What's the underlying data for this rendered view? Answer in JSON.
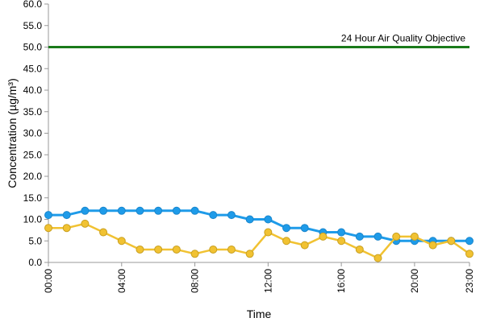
{
  "chart_data": {
    "type": "line",
    "title": "",
    "xlabel": "Time",
    "ylabel": "Concentration (µg/m³)",
    "ylim": [
      0,
      60
    ],
    "y_ticks": [
      "0.0",
      "5.0",
      "10.0",
      "15.0",
      "20.0",
      "25.0",
      "30.0",
      "35.0",
      "40.0",
      "45.0",
      "50.0",
      "55.0",
      "60.0"
    ],
    "y_tick_values": [
      0,
      5,
      10,
      15,
      20,
      25,
      30,
      35,
      40,
      45,
      50,
      55,
      60
    ],
    "x": [
      "00:00",
      "01:00",
      "02:00",
      "03:00",
      "04:00",
      "05:00",
      "06:00",
      "07:00",
      "08:00",
      "09:00",
      "10:00",
      "11:00",
      "12:00",
      "13:00",
      "14:00",
      "15:00",
      "16:00",
      "17:00",
      "18:00",
      "19:00",
      "20:00",
      "21:00",
      "22:00",
      "23:00"
    ],
    "x_tick_labels": [
      "00:00",
      "04:00",
      "08:00",
      "12:00",
      "16:00",
      "20:00",
      "23:00"
    ],
    "x_tick_indices": [
      0,
      4,
      8,
      12,
      16,
      20,
      23
    ],
    "series": [
      {
        "color": "#1e9be9",
        "values": [
          11,
          11,
          12,
          12,
          12,
          12,
          12,
          12,
          12,
          11,
          11,
          10,
          10,
          8,
          8,
          7,
          7,
          6,
          6,
          5,
          5,
          5,
          5,
          5
        ]
      },
      {
        "color": "#f1c232",
        "values": [
          8,
          8,
          9,
          7,
          5,
          3,
          3,
          3,
          2,
          3,
          3,
          2,
          7,
          5,
          4,
          6,
          5,
          3,
          1,
          6,
          6,
          4,
          5,
          2
        ]
      }
    ],
    "objective": {
      "value": 50,
      "label": "24 Hour Air Quality Objective",
      "color": "#1a7a1a"
    },
    "grid": false,
    "legend": "none"
  }
}
